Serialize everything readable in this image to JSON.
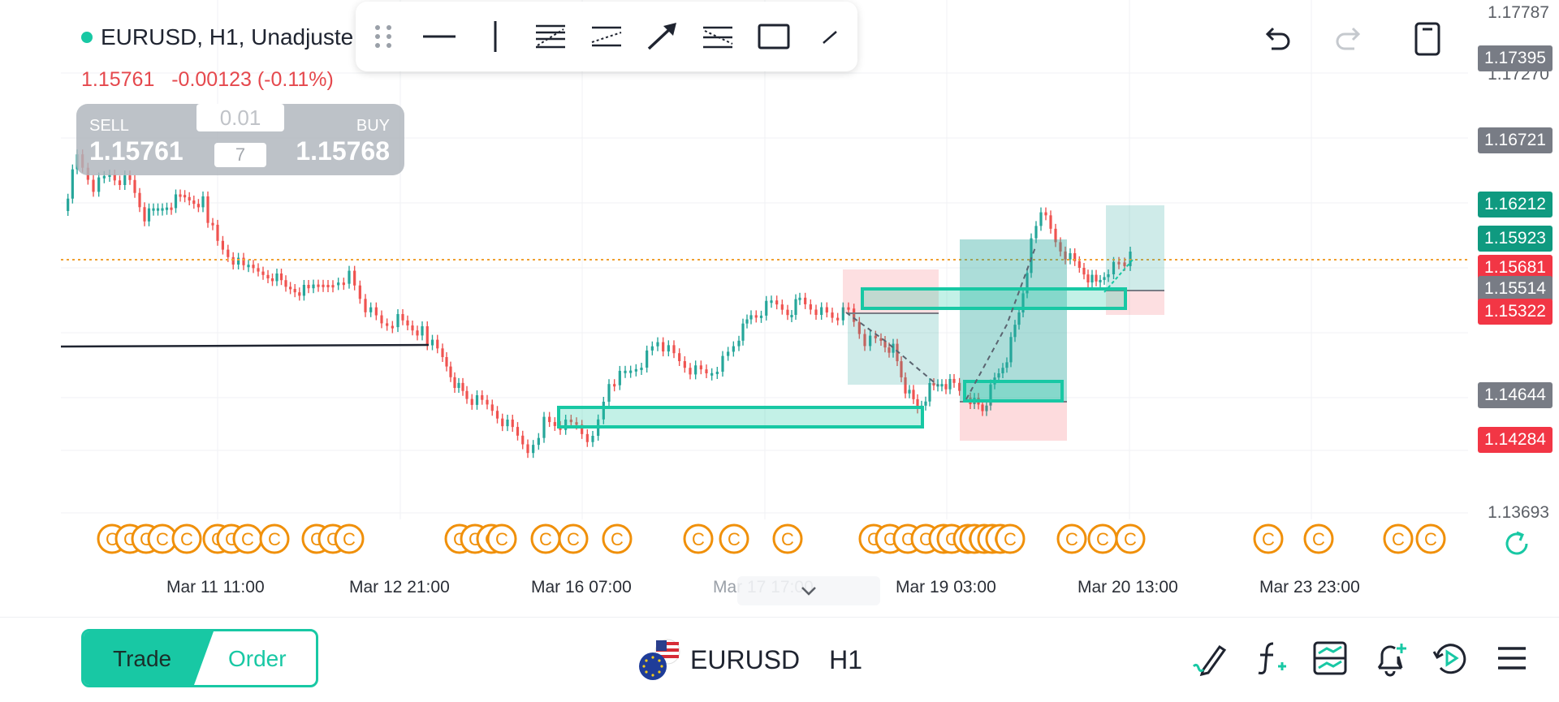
{
  "header": {
    "symbol_title": "EURUSD, H1, Unadjuste",
    "last_price": "1.15761",
    "change": "-0.00123 (-0.11%)"
  },
  "trade_panel": {
    "sell_label": "SELL",
    "sell_price": "1.15761",
    "buy_label": "BUY",
    "buy_price": "1.15768",
    "quantity": "0.01",
    "spread": "7"
  },
  "drawing_toolbar": {
    "tools": [
      "drag-handle-icon",
      "horizontal-line-icon",
      "vertical-line-icon",
      "fib-retracement-icon",
      "parallel-channel-icon",
      "arrow-icon",
      "pitchfork-icon",
      "rectangle-icon",
      "brush-icon"
    ]
  },
  "price_axis": {
    "labels": [
      "1.17787",
      "1.17270",
      "1.13693"
    ],
    "badges": [
      {
        "value": "1.17395",
        "color": "#787c85"
      },
      {
        "value": "1.16721",
        "color": "#787c85"
      },
      {
        "value": "1.16212",
        "color": "#0f9a80"
      },
      {
        "value": "1.15923",
        "color": "#0f9a80"
      },
      {
        "value": "1.15681",
        "color": "#f23645"
      },
      {
        "value": "1.15514",
        "color": "#787c85"
      },
      {
        "value": "1.15322",
        "color": "#f23645"
      },
      {
        "value": "1.14644",
        "color": "#787c85"
      },
      {
        "value": "1.14284",
        "color": "#f23645"
      }
    ]
  },
  "time_axis": {
    "labels": [
      "Mar 11 11:00",
      "Mar 12 21:00",
      "Mar 16 07:00",
      "Mar 17 17:00",
      "Mar 19 03:00",
      "Mar 20 13:00",
      "Mar 23 23:00"
    ]
  },
  "event_marker_symbol": "C",
  "bottom_bar": {
    "trade_tab": "Trade",
    "order_tab": "Order",
    "symbol": "EURUSD",
    "timeframe": "H1"
  },
  "colors": {
    "accent": "#18c8a4",
    "bull_candle": "#26a69a",
    "bear_candle": "#ef5350",
    "event_marker": "#f0900a"
  }
}
